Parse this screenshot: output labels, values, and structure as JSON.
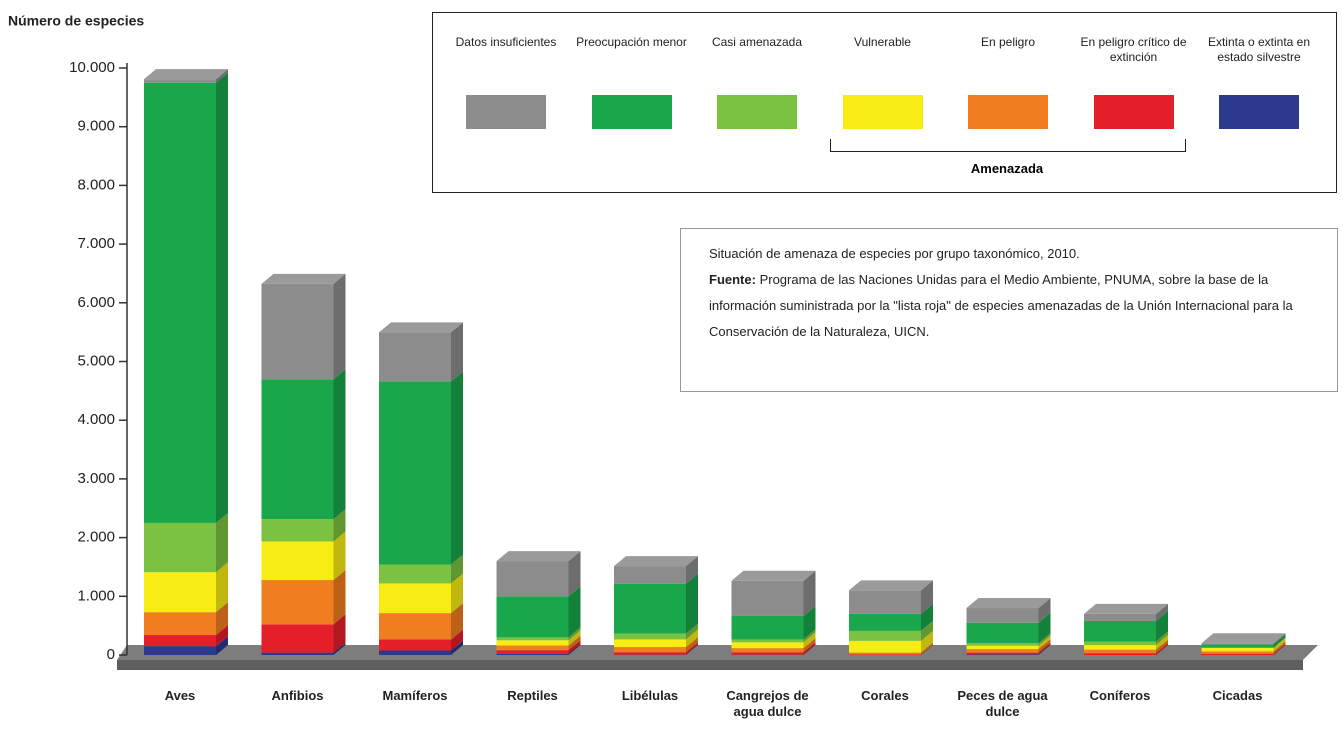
{
  "chart_data": {
    "type": "bar3d-stacked",
    "y_axis_label": "Número de especies",
    "categories": [
      "Aves",
      "Anfibios",
      "Mamíferos",
      "Reptiles",
      "Libélulas",
      "Cangrejos de agua dulce",
      "Corales",
      "Peces de agua dulce",
      "Coníferos",
      "Cicadas"
    ],
    "series": [
      {
        "name": "Extinta o extinta en estado silvestre",
        "color": "#2b3a8f",
        "values": [
          150,
          39,
          77,
          20,
          5,
          5,
          0,
          10,
          0,
          0
        ]
      },
      {
        "name": "En peligro crítico de extinción",
        "color": "#e51f2a",
        "values": [
          190,
          484,
          188,
          60,
          40,
          40,
          10,
          30,
          30,
          20
        ]
      },
      {
        "name": "En peligro",
        "color": "#f07d1f",
        "values": [
          390,
          754,
          449,
          80,
          90,
          70,
          30,
          60,
          60,
          40
        ]
      },
      {
        "name": "Vulnerable",
        "color": "#f7ec13",
        "values": [
          680,
          657,
          505,
          90,
          130,
          100,
          200,
          60,
          80,
          60
        ]
      },
      {
        "name": "Casi amenazada",
        "color": "#7cc242",
        "values": [
          840,
          381,
          323,
          50,
          100,
          50,
          170,
          40,
          60,
          10
        ]
      },
      {
        "name": "Preocupación menor",
        "color": "#1aa64a",
        "values": [
          7500,
          2383,
          3119,
          700,
          850,
          400,
          290,
          350,
          350,
          50
        ]
      },
      {
        "name": "Datos insuficientes",
        "color": "#8c8c8c",
        "values": [
          60,
          1624,
          836,
          600,
          300,
          600,
          400,
          250,
          120,
          20
        ]
      }
    ],
    "ylim": [
      0,
      10000
    ],
    "yticks": [
      0,
      {
        "value": 1000,
        "label": "1.000"
      },
      {
        "value": 2000,
        "label": "2.000"
      },
      {
        "value": 3000,
        "label": "3.000"
      },
      {
        "value": 4000,
        "label": "4.000"
      },
      {
        "value": 5000,
        "label": "5.000"
      },
      {
        "value": 6000,
        "label": "6.000"
      },
      {
        "value": 7000,
        "label": "7.000"
      },
      {
        "value": 8000,
        "label": "8.000"
      },
      {
        "value": 9000,
        "label": "9.000"
      },
      {
        "value": 10000,
        "label": "10.000"
      }
    ],
    "threatened_label": "Amenazada",
    "note": "Situación de amenaza de especies por grupo taxonómico, 2010.",
    "source_label": "Fuente:",
    "source": "Programa de las Naciones Unidas para el Medio Ambiente, PNUMA, sobre la base de la información suministrada por la \"lista roja\" de especies amenazadas de la Unión Internacional para la Conservación de la Naturaleza, UICN."
  }
}
